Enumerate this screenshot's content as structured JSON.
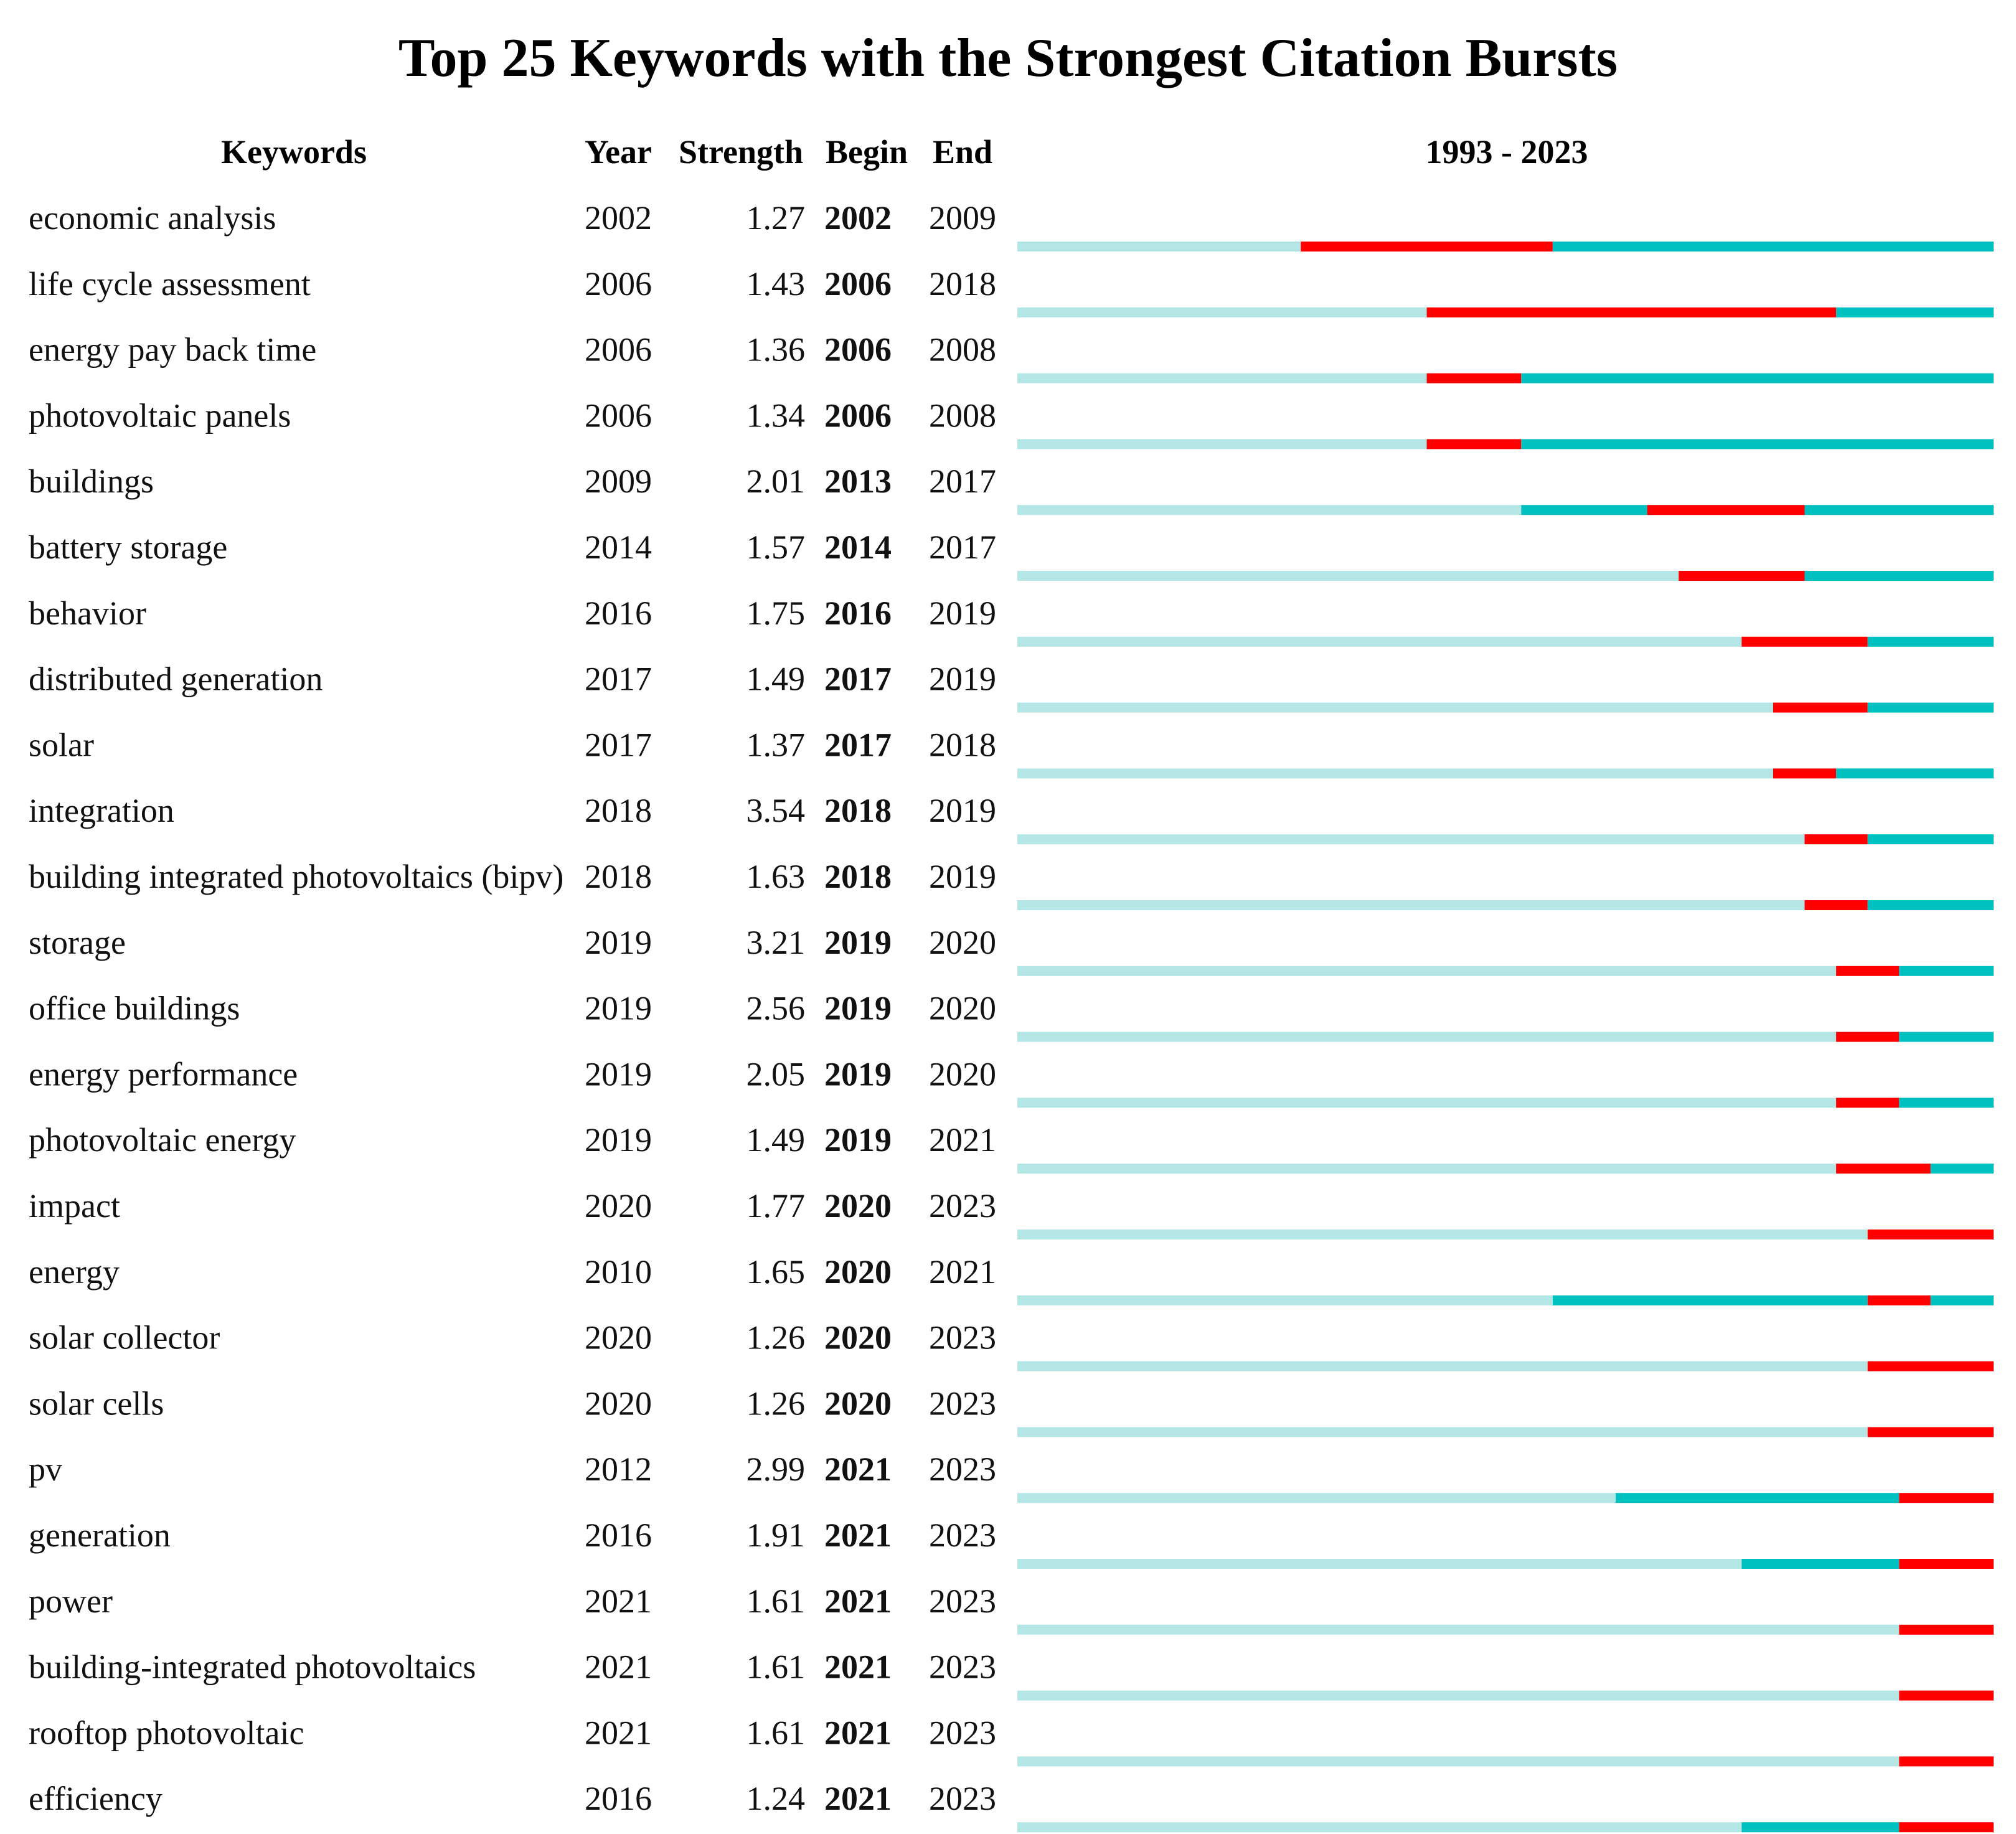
{
  "chart_data": {
    "type": "table",
    "title": "Top 25 Keywords with the Strongest Citation Bursts",
    "columns": [
      "Keywords",
      "Year",
      "Strength",
      "Begin",
      "End",
      "1993 - 2023"
    ],
    "range_start": 1993,
    "range_end": 2023,
    "colors": {
      "burst": "#ff0000",
      "active": "#00c0c0",
      "inactive": "#b4e6e6"
    },
    "rows": [
      {
        "keyword": "economic analysis",
        "year": "2002",
        "strength": "1.27",
        "begin": "2002",
        "end": "2009"
      },
      {
        "keyword": "life cycle assessment",
        "year": "2006",
        "strength": "1.43",
        "begin": "2006",
        "end": "2018"
      },
      {
        "keyword": "energy pay back time",
        "year": "2006",
        "strength": "1.36",
        "begin": "2006",
        "end": "2008"
      },
      {
        "keyword": "photovoltaic panels",
        "year": "2006",
        "strength": "1.34",
        "begin": "2006",
        "end": "2008"
      },
      {
        "keyword": "buildings",
        "year": "2009",
        "strength": "2.01",
        "begin": "2013",
        "end": "2017"
      },
      {
        "keyword": "battery storage",
        "year": "2014",
        "strength": "1.57",
        "begin": "2014",
        "end": "2017"
      },
      {
        "keyword": "behavior",
        "year": "2016",
        "strength": "1.75",
        "begin": "2016",
        "end": "2019"
      },
      {
        "keyword": "distributed generation",
        "year": "2017",
        "strength": "1.49",
        "begin": "2017",
        "end": "2019"
      },
      {
        "keyword": "solar",
        "year": "2017",
        "strength": "1.37",
        "begin": "2017",
        "end": "2018"
      },
      {
        "keyword": "integration",
        "year": "2018",
        "strength": "3.54",
        "begin": "2018",
        "end": "2019"
      },
      {
        "keyword": "building integrated photovoltaics (bipv)",
        "year": "2018",
        "strength": "1.63",
        "begin": "2018",
        "end": "2019"
      },
      {
        "keyword": "storage",
        "year": "2019",
        "strength": "3.21",
        "begin": "2019",
        "end": "2020"
      },
      {
        "keyword": "office buildings",
        "year": "2019",
        "strength": "2.56",
        "begin": "2019",
        "end": "2020"
      },
      {
        "keyword": "energy performance",
        "year": "2019",
        "strength": "2.05",
        "begin": "2019",
        "end": "2020"
      },
      {
        "keyword": "photovoltaic energy",
        "year": "2019",
        "strength": "1.49",
        "begin": "2019",
        "end": "2021"
      },
      {
        "keyword": "impact",
        "year": "2020",
        "strength": "1.77",
        "begin": "2020",
        "end": "2023"
      },
      {
        "keyword": "energy",
        "year": "2010",
        "strength": "1.65",
        "begin": "2020",
        "end": "2021"
      },
      {
        "keyword": "solar collector",
        "year": "2020",
        "strength": "1.26",
        "begin": "2020",
        "end": "2023"
      },
      {
        "keyword": "solar cells",
        "year": "2020",
        "strength": "1.26",
        "begin": "2020",
        "end": "2023"
      },
      {
        "keyword": "pv",
        "year": "2012",
        "strength": "2.99",
        "begin": "2021",
        "end": "2023"
      },
      {
        "keyword": "generation",
        "year": "2016",
        "strength": "1.91",
        "begin": "2021",
        "end": "2023"
      },
      {
        "keyword": "power",
        "year": "2021",
        "strength": "1.61",
        "begin": "2021",
        "end": "2023"
      },
      {
        "keyword": "building-integrated photovoltaics",
        "year": "2021",
        "strength": "1.61",
        "begin": "2021",
        "end": "2023"
      },
      {
        "keyword": "rooftop photovoltaic",
        "year": "2021",
        "strength": "1.61",
        "begin": "2021",
        "end": "2023"
      },
      {
        "keyword": "efficiency",
        "year": "2016",
        "strength": "1.24",
        "begin": "2021",
        "end": "2023"
      }
    ]
  }
}
